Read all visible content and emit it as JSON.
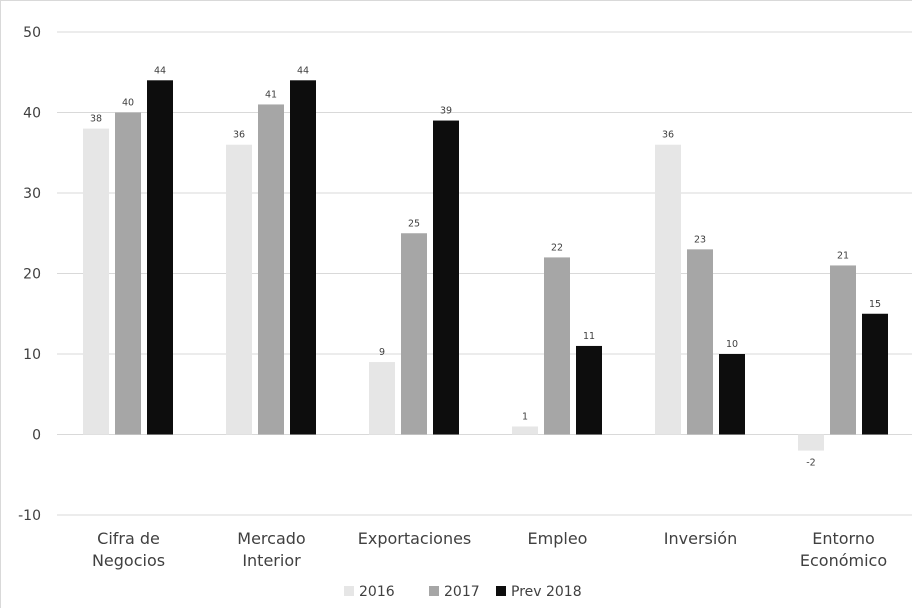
{
  "chart_data": {
    "type": "bar",
    "title": "",
    "xlabel": "",
    "ylabel": "",
    "categories": [
      [
        "Cifra de",
        "Negocios"
      ],
      [
        "Mercado",
        "Interior"
      ],
      [
        "Exportaciones"
      ],
      [
        "Empleo"
      ],
      [
        "Inversión"
      ],
      [
        "Entorno",
        "Económico"
      ]
    ],
    "series": [
      {
        "name": "2016",
        "color": "#e6e6e6",
        "values": [
          38,
          36,
          9,
          1,
          36,
          -2
        ]
      },
      {
        "name": "2017",
        "color": "#a6a6a6",
        "values": [
          40,
          41,
          25,
          22,
          23,
          21
        ]
      },
      {
        "name": "Prev 2018",
        "color": "#0d0d0d",
        "values": [
          44,
          44,
          39,
          11,
          10,
          15
        ]
      }
    ],
    "ylim": [
      -10,
      50
    ],
    "yticks": [
      -10,
      0,
      10,
      20,
      30,
      40,
      50
    ],
    "grid": true,
    "legend_position": "bottom",
    "data_labels": true
  }
}
